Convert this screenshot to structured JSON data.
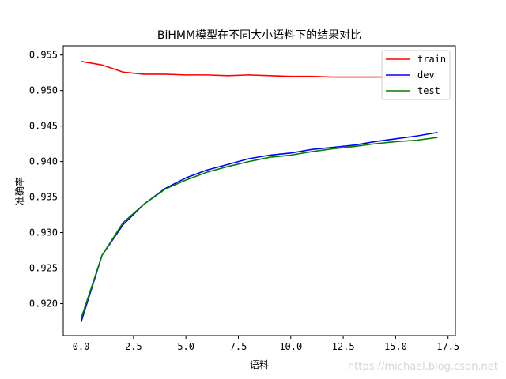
{
  "chart_data": {
    "type": "line",
    "title": "BiHMM模型在不同大小语料下的结果对比",
    "xlabel": "语料",
    "ylabel": "准确率",
    "xlim": [
      -0.85,
      17.85
    ],
    "ylim": [
      0.9155,
      0.9563
    ],
    "xticks": [
      0,
      2.5,
      5,
      7.5,
      10,
      12.5,
      15,
      17.5
    ],
    "xtick_labels": [
      "0.0",
      "2.5",
      "5.0",
      "7.5",
      "10.0",
      "12.5",
      "15.0",
      "17.5"
    ],
    "yticks": [
      0.92,
      0.925,
      0.93,
      0.935,
      0.94,
      0.945,
      0.95,
      0.955
    ],
    "ytick_labels": [
      "0.920",
      "0.925",
      "0.930",
      "0.935",
      "0.940",
      "0.945",
      "0.950",
      "0.955"
    ],
    "grid": false,
    "legend_position": "top-right",
    "x": [
      0,
      1,
      2,
      3,
      4,
      5,
      6,
      7,
      8,
      9,
      10,
      11,
      12,
      13,
      14,
      15,
      16,
      17
    ],
    "series": [
      {
        "name": "train",
        "color": "#ff0000",
        "values": [
          0.9541,
          0.9536,
          0.9526,
          0.9523,
          0.9523,
          0.9522,
          0.9522,
          0.9521,
          0.9522,
          0.9521,
          0.952,
          0.952,
          0.9519,
          0.9519,
          0.9519,
          0.9519,
          0.9519,
          0.9519
        ]
      },
      {
        "name": "dev",
        "color": "#0000ff",
        "values": [
          0.9174,
          0.9268,
          0.9311,
          0.934,
          0.9362,
          0.9377,
          0.9388,
          0.9396,
          0.9404,
          0.9409,
          0.9412,
          0.9417,
          0.942,
          0.9423,
          0.9428,
          0.9432,
          0.9436,
          0.9441
        ]
      },
      {
        "name": "test",
        "color": "#008000",
        "values": [
          0.9179,
          0.9268,
          0.9314,
          0.934,
          0.9361,
          0.9374,
          0.9385,
          0.9393,
          0.94,
          0.9406,
          0.9409,
          0.9414,
          0.9418,
          0.9421,
          0.9425,
          0.9428,
          0.943,
          0.9434
        ]
      }
    ]
  },
  "watermark": "https://michael.blog.csdn.net"
}
